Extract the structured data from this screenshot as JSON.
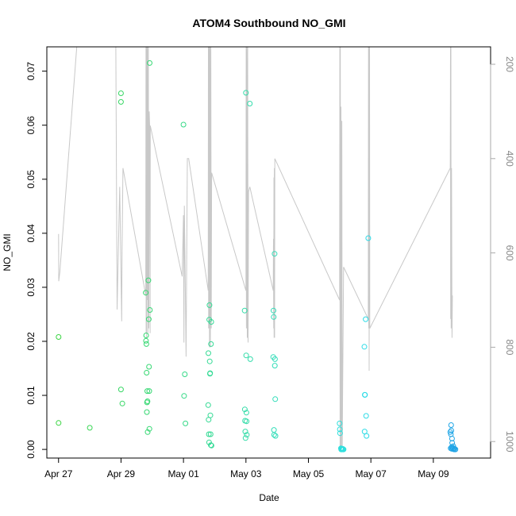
{
  "chart_data": {
    "type": "scatter",
    "title": "ATOM4 Southbound NO_GMI",
    "xlabel": "Date",
    "ylabel": "NO_GMI",
    "x_range": [
      "2016-04-26T15:00",
      "2016-05-10T20:00"
    ],
    "ylim": [
      -0.0016,
      0.0745
    ],
    "x_ticks": [
      {
        "date": "2016-04-27",
        "label": "Apr 27"
      },
      {
        "date": "2016-04-29",
        "label": "Apr 29"
      },
      {
        "date": "2016-05-01",
        "label": "May 01"
      },
      {
        "date": "2016-05-03",
        "label": "May 03"
      },
      {
        "date": "2016-05-05",
        "label": "May 05"
      },
      {
        "date": "2016-05-07",
        "label": "May 07"
      },
      {
        "date": "2016-05-09",
        "label": "May 09"
      }
    ],
    "y_ticks": [
      {
        "value": 0.0,
        "label": "0.00"
      },
      {
        "value": 0.01,
        "label": "0.01"
      },
      {
        "value": 0.02,
        "label": "0.02"
      },
      {
        "value": 0.03,
        "label": "0.03"
      },
      {
        "value": 0.04,
        "label": "0.04"
      },
      {
        "value": 0.05,
        "label": "0.05"
      },
      {
        "value": 0.06,
        "label": "0.06"
      },
      {
        "value": 0.07,
        "label": "0.07"
      }
    ],
    "secondary_axis": {
      "side": "right",
      "reversed": true,
      "color": "#aaaaaa",
      "range": [
        1035,
        163
      ],
      "ticks": [
        {
          "value": 200,
          "label": "200"
        },
        {
          "value": 400,
          "label": "400"
        },
        {
          "value": 600,
          "label": "600"
        },
        {
          "value": 800,
          "label": "800"
        },
        {
          "value": 1000,
          "label": "1000"
        }
      ],
      "line_color": "#c8c8c8",
      "series": [
        [
          "2016-04-27T00:00",
          560
        ],
        [
          "2016-04-27T00:10",
          660
        ],
        [
          "2016-04-27T01:00",
          640
        ],
        [
          "2016-04-27T14:00",
          60
        ],
        [
          "2016-04-28T20:00",
          60
        ],
        [
          "2016-04-28T21:00",
          720
        ],
        [
          "2016-04-28T23:00",
          460
        ],
        [
          "2016-04-29T00:30",
          745
        ],
        [
          "2016-04-29T00:50",
          590
        ],
        [
          "2016-04-29T01:30",
          420
        ],
        [
          "2016-04-29T19:00",
          690
        ],
        [
          "2016-04-29T19:10",
          100
        ],
        [
          "2016-04-29T19:20",
          770
        ],
        [
          "2016-04-29T19:30",
          90
        ],
        [
          "2016-04-29T19:40",
          780
        ],
        [
          "2016-04-29T19:50",
          150
        ],
        [
          "2016-04-29T20:00",
          700
        ],
        [
          "2016-04-29T20:20",
          120
        ],
        [
          "2016-04-29T20:40",
          770
        ],
        [
          "2016-04-29T21:00",
          150
        ],
        [
          "2016-04-29T21:20",
          760
        ],
        [
          "2016-04-29T21:40",
          300
        ],
        [
          "2016-04-29T22:00",
          330
        ],
        [
          "2016-04-29T22:20",
          770
        ],
        [
          "2016-04-29T22:30",
          330
        ],
        [
          "2016-04-30T23:00",
          650
        ],
        [
          "2016-05-01T00:00",
          520
        ],
        [
          "2016-05-01T00:20",
          790
        ],
        [
          "2016-05-01T00:40",
          500
        ],
        [
          "2016-05-01T01:00",
          580
        ],
        [
          "2016-05-01T02:00",
          820
        ],
        [
          "2016-05-01T03:00",
          400
        ],
        [
          "2016-05-01T04:00",
          400
        ],
        [
          "2016-05-01T19:00",
          680
        ],
        [
          "2016-05-01T19:10",
          120
        ],
        [
          "2016-05-01T19:20",
          760
        ],
        [
          "2016-05-01T19:30",
          90
        ],
        [
          "2016-05-01T19:40",
          760
        ],
        [
          "2016-05-01T19:50",
          110
        ],
        [
          "2016-05-01T20:00",
          800
        ],
        [
          "2016-05-01T20:20",
          110
        ],
        [
          "2016-05-01T20:40",
          800
        ],
        [
          "2016-05-01T21:00",
          110
        ],
        [
          "2016-05-01T21:20",
          760
        ],
        [
          "2016-05-01T21:40",
          430
        ],
        [
          "2016-05-03T00:00",
          680
        ],
        [
          "2016-05-03T00:10",
          120
        ],
        [
          "2016-05-03T00:20",
          760
        ],
        [
          "2016-05-03T00:40",
          140
        ],
        [
          "2016-05-03T01:00",
          780
        ],
        [
          "2016-05-03T01:20",
          130
        ],
        [
          "2016-05-03T01:40",
          790
        ],
        [
          "2016-05-03T02:00",
          470
        ],
        [
          "2016-05-03T03:00",
          460
        ],
        [
          "2016-05-03T21:00",
          680
        ],
        [
          "2016-05-03T21:10",
          570
        ],
        [
          "2016-05-03T21:20",
          760
        ],
        [
          "2016-05-03T21:30",
          440
        ],
        [
          "2016-05-03T21:40",
          780
        ],
        [
          "2016-05-03T21:50",
          420
        ],
        [
          "2016-05-03T22:00",
          780
        ],
        [
          "2016-05-03T22:10",
          400
        ],
        [
          "2016-05-06T00:00",
          700
        ],
        [
          "2016-05-06T00:10",
          90
        ],
        [
          "2016-05-06T00:20",
          1010
        ],
        [
          "2016-05-06T00:30",
          160
        ],
        [
          "2016-05-06T00:40",
          1010
        ],
        [
          "2016-05-06T01:00",
          290
        ],
        [
          "2016-05-06T01:20",
          1010
        ],
        [
          "2016-05-06T01:40",
          320
        ],
        [
          "2016-05-06T02:00",
          1010
        ],
        [
          "2016-05-06T03:00",
          630
        ],
        [
          "2016-05-06T22:00",
          740
        ],
        [
          "2016-05-06T22:10",
          100
        ],
        [
          "2016-05-06T22:20",
          760
        ],
        [
          "2016-05-06T22:30",
          90
        ],
        [
          "2016-05-06T22:40",
          850
        ],
        [
          "2016-05-06T23:00",
          100
        ],
        [
          "2016-05-06T23:10",
          760
        ],
        [
          "2016-05-09T13:00",
          420
        ],
        [
          "2016-05-09T13:10",
          90
        ],
        [
          "2016-05-09T13:20",
          740
        ],
        [
          "2016-05-09T13:30",
          100
        ],
        [
          "2016-05-09T13:40",
          760
        ],
        [
          "2016-05-09T14:00",
          420
        ],
        [
          "2016-05-09T14:20",
          780
        ],
        [
          "2016-05-09T14:40",
          690
        ]
      ]
    },
    "points": [
      [
        "2016-04-27T00:00",
        0.0208
      ],
      [
        "2016-04-27T00:00",
        0.0049
      ],
      [
        "2016-04-28T00:00",
        0.004
      ],
      [
        "2016-04-29T00:00",
        0.0659
      ],
      [
        "2016-04-29T00:00",
        0.0643
      ],
      [
        "2016-04-29T00:00",
        0.0111
      ],
      [
        "2016-04-29T01:00",
        0.0085
      ],
      [
        "2016-04-29T19:00",
        0.029
      ],
      [
        "2016-04-29T19:10",
        0.0201
      ],
      [
        "2016-04-29T19:20",
        0.0211
      ],
      [
        "2016-04-29T19:30",
        0.0195
      ],
      [
        "2016-04-29T19:40",
        0.0142
      ],
      [
        "2016-04-29T19:50",
        0.0069
      ],
      [
        "2016-04-29T20:00",
        0.0087
      ],
      [
        "2016-04-29T20:10",
        0.0108
      ],
      [
        "2016-04-29T20:20",
        0.0089
      ],
      [
        "2016-04-29T20:30",
        0.0032
      ],
      [
        "2016-04-29T21:00",
        0.0313
      ],
      [
        "2016-04-29T21:20",
        0.0241
      ],
      [
        "2016-04-29T21:30",
        0.0153
      ],
      [
        "2016-04-29T21:40",
        0.0108
      ],
      [
        "2016-04-29T21:50",
        0.0038
      ],
      [
        "2016-04-29T22:00",
        0.0715
      ],
      [
        "2016-04-29T22:10",
        0.0258
      ],
      [
        "2016-05-01T00:00",
        0.0601
      ],
      [
        "2016-05-01T01:00",
        0.0139
      ],
      [
        "2016-05-01T00:30",
        0.0099
      ],
      [
        "2016-05-01T01:30",
        0.0048
      ],
      [
        "2016-05-01T19:00",
        0.0082
      ],
      [
        "2016-05-01T19:10",
        0.0178
      ],
      [
        "2016-05-01T19:20",
        0.0055
      ],
      [
        "2016-05-01T19:30",
        0.0028
      ],
      [
        "2016-05-01T19:40",
        0.0013
      ],
      [
        "2016-05-01T19:50",
        0.024
      ],
      [
        "2016-05-01T20:00",
        0.0267
      ],
      [
        "2016-05-01T20:10",
        0.0163
      ],
      [
        "2016-05-01T20:20",
        0.014
      ],
      [
        "2016-05-01T20:30",
        0.0141
      ],
      [
        "2016-05-01T20:40",
        0.0063
      ],
      [
        "2016-05-01T20:50",
        0.0028
      ],
      [
        "2016-05-01T21:00",
        0.0008
      ],
      [
        "2016-05-01T21:10",
        0.0195
      ],
      [
        "2016-05-01T21:20",
        0.0236
      ],
      [
        "2016-05-01T21:30",
        0.0007
      ],
      [
        "2016-05-02T23:00",
        0.0257
      ],
      [
        "2016-05-02T23:10",
        0.0074
      ],
      [
        "2016-05-02T23:20",
        0.0053
      ],
      [
        "2016-05-02T23:30",
        0.0033
      ],
      [
        "2016-05-02T23:40",
        0.0021
      ],
      [
        "2016-05-03T00:00",
        0.066
      ],
      [
        "2016-05-03T00:10",
        0.0174
      ],
      [
        "2016-05-03T00:20",
        0.0068
      ],
      [
        "2016-05-03T00:30",
        0.0052
      ],
      [
        "2016-05-03T00:40",
        0.0027
      ],
      [
        "2016-05-03T03:00",
        0.064
      ],
      [
        "2016-05-03T03:20",
        0.0167
      ],
      [
        "2016-05-03T21:00",
        0.0171
      ],
      [
        "2016-05-03T21:10",
        0.0257
      ],
      [
        "2016-05-03T21:20",
        0.0245
      ],
      [
        "2016-05-03T21:30",
        0.0036
      ],
      [
        "2016-05-03T21:40",
        0.0027
      ],
      [
        "2016-05-03T22:00",
        0.0362
      ],
      [
        "2016-05-03T22:10",
        0.0155
      ],
      [
        "2016-05-03T22:20",
        0.0167
      ],
      [
        "2016-05-03T22:30",
        0.0093
      ],
      [
        "2016-05-03T22:40",
        0.0025
      ],
      [
        "2016-05-06T00:00",
        0.0048
      ],
      [
        "2016-05-06T00:10",
        0.0037
      ],
      [
        "2016-05-06T00:20",
        0.003
      ],
      [
        "2016-05-06T01:00",
        0.0002
      ],
      [
        "2016-05-06T01:10",
        0.0
      ],
      [
        "2016-05-06T01:20",
        0.0001
      ],
      [
        "2016-05-06T01:30",
        0.0
      ],
      [
        "2016-05-06T01:40",
        0.0001
      ],
      [
        "2016-05-06T02:00",
        0.0
      ],
      [
        "2016-05-06T02:20",
        0.0001
      ],
      [
        "2016-05-06T02:40",
        0.0
      ],
      [
        "2016-05-06T03:00",
        0.0
      ],
      [
        "2016-05-06T19:00",
        0.019
      ],
      [
        "2016-05-06T19:10",
        0.0033
      ],
      [
        "2016-05-06T19:20",
        0.0101
      ],
      [
        "2016-05-06T19:30",
        0.0101
      ],
      [
        "2016-05-06T20:00",
        0.0241
      ],
      [
        "2016-05-06T20:20",
        0.0062
      ],
      [
        "2016-05-06T20:40",
        0.0025
      ],
      [
        "2016-05-06T22:00",
        0.0391
      ],
      [
        "2016-05-09T13:00",
        0.0032
      ],
      [
        "2016-05-09T13:20",
        0.0002
      ],
      [
        "2016-05-09T13:30",
        0.0028
      ],
      [
        "2016-05-09T13:40",
        0.0045
      ],
      [
        "2016-05-09T13:50",
        0.0035
      ],
      [
        "2016-05-09T14:00",
        0.0004
      ],
      [
        "2016-05-09T14:10",
        0.0001
      ],
      [
        "2016-05-09T14:20",
        0.002
      ],
      [
        "2016-05-09T14:30",
        0.0012
      ],
      [
        "2016-05-09T14:40",
        0.0003
      ],
      [
        "2016-05-09T15:00",
        0.0001
      ],
      [
        "2016-05-09T15:20",
        0.0006
      ],
      [
        "2016-05-09T15:40",
        0.0002
      ],
      [
        "2016-05-09T16:00",
        0.0
      ],
      [
        "2016-05-09T16:20",
        0.0001
      ],
      [
        "2016-05-09T17:00",
        0.0
      ]
    ],
    "point_color_start": "#39d43b",
    "point_color_mid": "#2fe0e6",
    "point_color_end": "#1b8ee6",
    "grid": false,
    "legend": "none"
  }
}
